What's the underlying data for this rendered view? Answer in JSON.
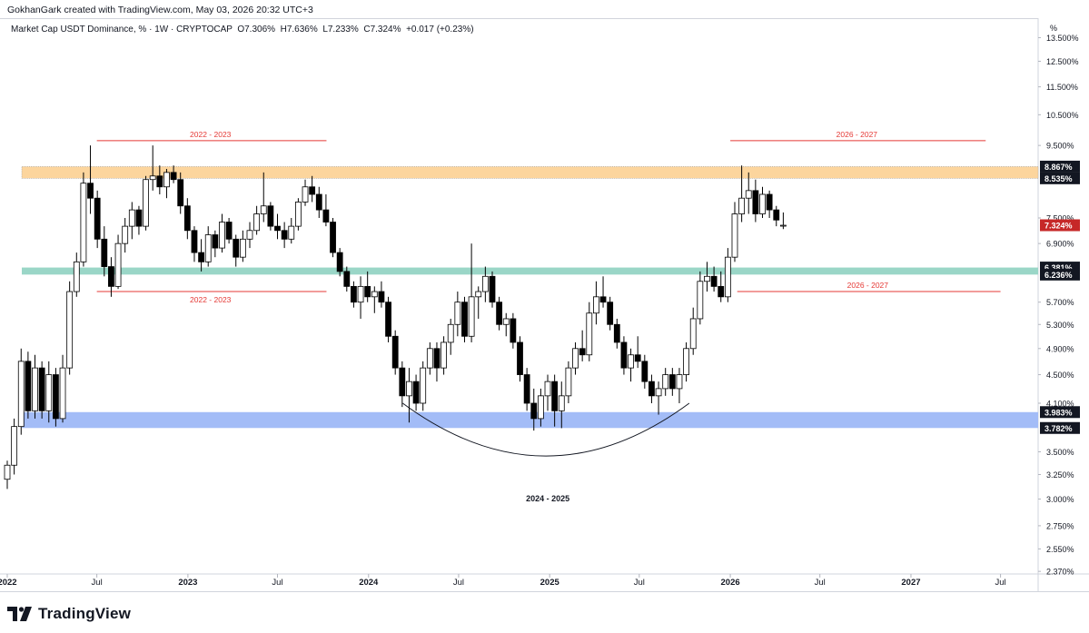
{
  "header": {
    "credit": "GokhanGark created with TradingView.com, May 03, 2026 20:32 UTC+3"
  },
  "legend": {
    "symbol": "Market Cap USDT Dominance, % · 1W · CRYPTOCAP",
    "open": "O7.306%",
    "high": "H7.636%",
    "low": "L7.233%",
    "close": "C7.324%",
    "change": "+0.017 (+0.23%)"
  },
  "footer": {
    "brand": "TradingView",
    "logo_icon": "tradingview-logo-icon"
  },
  "colors": {
    "up_candle": "#ffffff",
    "down_candle": "#000000",
    "resistance_zone": "#fcd59d",
    "support_mid_zone": "#9ad6c7",
    "support_low_zone": "#a3bcf7",
    "annotation_red": "#e53935",
    "last_price_badge": "#c62828"
  },
  "chart_data": {
    "type": "candlestick",
    "title": "Market Cap USDT Dominance, % · 1W · CRYPTOCAP",
    "y_unit": "%",
    "y_scale": "log",
    "ylim": [
      2.35,
      14.3
    ],
    "x_start": "2022-01-01",
    "x_end": "2027-09-15",
    "y_ticks": [
      "13.500%",
      "12.500%",
      "11.500%",
      "10.500%",
      "9.500%",
      "7.500%",
      "6.900%",
      "5.700%",
      "5.300%",
      "4.900%",
      "4.500%",
      "4.100%",
      "3.500%",
      "3.250%",
      "3.000%",
      "2.750%",
      "2.550%",
      "2.370%"
    ],
    "y_tick_values": [
      13.5,
      12.5,
      11.5,
      10.5,
      9.5,
      7.5,
      6.9,
      5.7,
      5.3,
      4.9,
      4.5,
      4.1,
      3.5,
      3.25,
      3.0,
      2.75,
      2.55,
      2.37
    ],
    "x_ticks": [
      {
        "label": "2022",
        "date": "2022-01-01"
      },
      {
        "label": "Jul",
        "date": "2022-07-01"
      },
      {
        "label": "2023",
        "date": "2023-01-01"
      },
      {
        "label": "Jul",
        "date": "2023-07-01"
      },
      {
        "label": "2024",
        "date": "2024-01-01"
      },
      {
        "label": "Jul",
        "date": "2024-07-01"
      },
      {
        "label": "2025",
        "date": "2025-01-01"
      },
      {
        "label": "Jul",
        "date": "2025-07-01"
      },
      {
        "label": "2026",
        "date": "2026-01-01"
      },
      {
        "label": "Jul",
        "date": "2026-07-01"
      },
      {
        "label": "2027",
        "date": "2027-01-01"
      },
      {
        "label": "Jul",
        "date": "2027-07-01"
      }
    ],
    "zones": [
      {
        "name": "resistance",
        "low": 8.535,
        "high": 8.867,
        "low_label": "8.535%",
        "high_label": "8.867%"
      },
      {
        "name": "mid-support",
        "low": 6.236,
        "high": 6.381,
        "low_label": "6.236%",
        "high_label": "6.381%"
      },
      {
        "name": "low-support",
        "low": 3.782,
        "high": 3.983,
        "low_label": "3.782%",
        "high_label": "3.983%"
      }
    ],
    "last_price": {
      "value": 7.324,
      "label": "7.324%"
    },
    "annotations": [
      {
        "text": "2022 - 2023",
        "y": 9.65,
        "x_from": "2022-07-01",
        "x_to": "2023-10-08",
        "label_pos": "above"
      },
      {
        "text": "2022 - 2023",
        "y": 5.9,
        "x_from": "2022-07-01",
        "x_to": "2023-10-08",
        "label_pos": "below"
      },
      {
        "text": "2026 - 2027",
        "y": 9.65,
        "x_from": "2026-01-01",
        "x_to": "2027-06-01",
        "label_pos": "above"
      },
      {
        "text": "2026 - 2027",
        "y": 5.9,
        "x_from": "2026-01-15",
        "x_to": "2027-07-01",
        "label_pos": "above"
      },
      {
        "text": "2024 - 2025",
        "y": 3.35,
        "x_from": "2024-03-10",
        "x_to": "2025-10-10",
        "label_pos": "below",
        "shape": "arc"
      }
    ],
    "candles": [
      {
        "d": "2022-01-01",
        "o": 3.2,
        "h": 3.4,
        "l": 3.1,
        "c": 3.35
      },
      {
        "d": "2022-01-15",
        "o": 3.35,
        "h": 3.9,
        "l": 3.25,
        "c": 3.8
      },
      {
        "d": "2022-01-29",
        "o": 3.8,
        "h": 4.9,
        "l": 3.7,
        "c": 4.7
      },
      {
        "d": "2022-02-12",
        "o": 4.7,
        "h": 4.85,
        "l": 3.9,
        "c": 4.0
      },
      {
        "d": "2022-02-26",
        "o": 4.0,
        "h": 4.8,
        "l": 3.9,
        "c": 4.6
      },
      {
        "d": "2022-03-12",
        "o": 4.6,
        "h": 4.7,
        "l": 3.9,
        "c": 4.0
      },
      {
        "d": "2022-03-26",
        "o": 4.0,
        "h": 4.7,
        "l": 3.85,
        "c": 4.5
      },
      {
        "d": "2022-04-09",
        "o": 4.5,
        "h": 4.6,
        "l": 3.8,
        "c": 3.9
      },
      {
        "d": "2022-04-23",
        "o": 3.9,
        "h": 4.8,
        "l": 3.85,
        "c": 4.6
      },
      {
        "d": "2022-05-07",
        "o": 4.6,
        "h": 6.1,
        "l": 4.5,
        "c": 5.9
      },
      {
        "d": "2022-05-21",
        "o": 5.9,
        "h": 6.7,
        "l": 5.8,
        "c": 6.5
      },
      {
        "d": "2022-06-04",
        "o": 6.5,
        "h": 8.7,
        "l": 6.4,
        "c": 8.4
      },
      {
        "d": "2022-06-18",
        "o": 8.4,
        "h": 9.5,
        "l": 7.6,
        "c": 8.0
      },
      {
        "d": "2022-07-02",
        "o": 8.0,
        "h": 8.2,
        "l": 6.8,
        "c": 7.0
      },
      {
        "d": "2022-07-16",
        "o": 7.0,
        "h": 7.3,
        "l": 6.2,
        "c": 6.4
      },
      {
        "d": "2022-07-30",
        "o": 6.4,
        "h": 6.6,
        "l": 5.8,
        "c": 6.0
      },
      {
        "d": "2022-08-13",
        "o": 6.0,
        "h": 7.1,
        "l": 5.95,
        "c": 6.9
      },
      {
        "d": "2022-08-27",
        "o": 6.9,
        "h": 7.5,
        "l": 6.7,
        "c": 7.3
      },
      {
        "d": "2022-09-10",
        "o": 7.3,
        "h": 7.9,
        "l": 7.0,
        "c": 7.7
      },
      {
        "d": "2022-09-24",
        "o": 7.7,
        "h": 7.8,
        "l": 7.1,
        "c": 7.3
      },
      {
        "d": "2022-10-08",
        "o": 7.3,
        "h": 8.6,
        "l": 7.2,
        "c": 8.5
      },
      {
        "d": "2022-10-22",
        "o": 8.5,
        "h": 9.5,
        "l": 8.2,
        "c": 8.6
      },
      {
        "d": "2022-11-05",
        "o": 8.6,
        "h": 8.9,
        "l": 8.1,
        "c": 8.3
      },
      {
        "d": "2022-11-19",
        "o": 8.3,
        "h": 8.8,
        "l": 8.0,
        "c": 8.7
      },
      {
        "d": "2022-12-03",
        "o": 8.7,
        "h": 8.9,
        "l": 8.4,
        "c": 8.5
      },
      {
        "d": "2022-12-17",
        "o": 8.5,
        "h": 8.7,
        "l": 7.6,
        "c": 7.8
      },
      {
        "d": "2022-12-31",
        "o": 7.8,
        "h": 8.0,
        "l": 7.0,
        "c": 7.2
      },
      {
        "d": "2023-01-14",
        "o": 7.2,
        "h": 7.3,
        "l": 6.5,
        "c": 6.7
      },
      {
        "d": "2023-01-28",
        "o": 6.7,
        "h": 7.0,
        "l": 6.3,
        "c": 6.5
      },
      {
        "d": "2023-02-11",
        "o": 6.5,
        "h": 7.3,
        "l": 6.4,
        "c": 7.1
      },
      {
        "d": "2023-02-25",
        "o": 7.1,
        "h": 7.2,
        "l": 6.6,
        "c": 6.8
      },
      {
        "d": "2023-03-11",
        "o": 6.8,
        "h": 7.6,
        "l": 6.7,
        "c": 7.4
      },
      {
        "d": "2023-03-25",
        "o": 7.4,
        "h": 7.5,
        "l": 6.9,
        "c": 7.0
      },
      {
        "d": "2023-04-08",
        "o": 7.0,
        "h": 7.1,
        "l": 6.4,
        "c": 6.6
      },
      {
        "d": "2023-04-22",
        "o": 6.6,
        "h": 7.2,
        "l": 6.5,
        "c": 7.0
      },
      {
        "d": "2023-05-06",
        "o": 7.0,
        "h": 7.4,
        "l": 6.8,
        "c": 7.2
      },
      {
        "d": "2023-05-20",
        "o": 7.2,
        "h": 7.8,
        "l": 7.1,
        "c": 7.6
      },
      {
        "d": "2023-06-03",
        "o": 7.6,
        "h": 8.7,
        "l": 7.4,
        "c": 7.8
      },
      {
        "d": "2023-06-17",
        "o": 7.8,
        "h": 7.9,
        "l": 7.2,
        "c": 7.3
      },
      {
        "d": "2023-07-01",
        "o": 7.3,
        "h": 7.6,
        "l": 7.0,
        "c": 7.2
      },
      {
        "d": "2023-07-15",
        "o": 7.2,
        "h": 7.4,
        "l": 6.8,
        "c": 7.0
      },
      {
        "d": "2023-07-29",
        "o": 7.0,
        "h": 7.5,
        "l": 6.9,
        "c": 7.3
      },
      {
        "d": "2023-08-12",
        "o": 7.3,
        "h": 8.0,
        "l": 7.2,
        "c": 7.9
      },
      {
        "d": "2023-08-26",
        "o": 7.9,
        "h": 8.5,
        "l": 7.8,
        "c": 8.3
      },
      {
        "d": "2023-09-09",
        "o": 8.3,
        "h": 8.6,
        "l": 7.9,
        "c": 8.1
      },
      {
        "d": "2023-09-23",
        "o": 8.1,
        "h": 8.3,
        "l": 7.5,
        "c": 7.7
      },
      {
        "d": "2023-10-07",
        "o": 7.7,
        "h": 8.1,
        "l": 7.3,
        "c": 7.4
      },
      {
        "d": "2023-10-21",
        "o": 7.4,
        "h": 7.5,
        "l": 6.6,
        "c": 6.7
      },
      {
        "d": "2023-11-04",
        "o": 6.7,
        "h": 6.8,
        "l": 6.2,
        "c": 6.3
      },
      {
        "d": "2023-11-18",
        "o": 6.3,
        "h": 6.4,
        "l": 5.9,
        "c": 6.0
      },
      {
        "d": "2023-12-02",
        "o": 6.0,
        "h": 6.1,
        "l": 5.6,
        "c": 5.7
      },
      {
        "d": "2023-12-16",
        "o": 5.7,
        "h": 6.2,
        "l": 5.4,
        "c": 6.0
      },
      {
        "d": "2023-12-30",
        "o": 6.0,
        "h": 6.3,
        "l": 5.7,
        "c": 5.8
      },
      {
        "d": "2024-01-13",
        "o": 5.8,
        "h": 6.0,
        "l": 5.5,
        "c": 5.9
      },
      {
        "d": "2024-01-27",
        "o": 5.9,
        "h": 6.1,
        "l": 5.6,
        "c": 5.7
      },
      {
        "d": "2024-02-10",
        "o": 5.7,
        "h": 5.8,
        "l": 5.0,
        "c": 5.1
      },
      {
        "d": "2024-02-24",
        "o": 5.1,
        "h": 5.2,
        "l": 4.5,
        "c": 4.6
      },
      {
        "d": "2024-03-09",
        "o": 4.6,
        "h": 4.7,
        "l": 4.05,
        "c": 4.2
      },
      {
        "d": "2024-03-23",
        "o": 4.2,
        "h": 4.6,
        "l": 3.85,
        "c": 4.4
      },
      {
        "d": "2024-04-06",
        "o": 4.4,
        "h": 4.5,
        "l": 4.0,
        "c": 4.1
      },
      {
        "d": "2024-04-20",
        "o": 4.1,
        "h": 4.7,
        "l": 4.0,
        "c": 4.6
      },
      {
        "d": "2024-05-04",
        "o": 4.6,
        "h": 5.0,
        "l": 4.5,
        "c": 4.9
      },
      {
        "d": "2024-05-18",
        "o": 4.9,
        "h": 5.0,
        "l": 4.4,
        "c": 4.6
      },
      {
        "d": "2024-06-01",
        "o": 4.6,
        "h": 5.1,
        "l": 4.5,
        "c": 5.0
      },
      {
        "d": "2024-06-15",
        "o": 5.0,
        "h": 5.4,
        "l": 4.8,
        "c": 5.3
      },
      {
        "d": "2024-06-29",
        "o": 5.3,
        "h": 5.9,
        "l": 5.1,
        "c": 5.7
      },
      {
        "d": "2024-07-13",
        "o": 5.7,
        "h": 5.8,
        "l": 5.0,
        "c": 5.1
      },
      {
        "d": "2024-07-27",
        "o": 5.1,
        "h": 6.9,
        "l": 5.0,
        "c": 5.8
      },
      {
        "d": "2024-08-10",
        "o": 5.8,
        "h": 6.0,
        "l": 5.4,
        "c": 5.9
      },
      {
        "d": "2024-08-24",
        "o": 5.9,
        "h": 6.4,
        "l": 5.7,
        "c": 6.2
      },
      {
        "d": "2024-09-07",
        "o": 6.2,
        "h": 6.3,
        "l": 5.6,
        "c": 5.7
      },
      {
        "d": "2024-09-21",
        "o": 5.7,
        "h": 5.8,
        "l": 5.2,
        "c": 5.3
      },
      {
        "d": "2024-10-05",
        "o": 5.3,
        "h": 5.5,
        "l": 5.1,
        "c": 5.4
      },
      {
        "d": "2024-10-19",
        "o": 5.4,
        "h": 5.5,
        "l": 4.9,
        "c": 5.0
      },
      {
        "d": "2024-11-02",
        "o": 5.0,
        "h": 5.1,
        "l": 4.4,
        "c": 4.5
      },
      {
        "d": "2024-11-16",
        "o": 4.5,
        "h": 4.6,
        "l": 4.0,
        "c": 4.1
      },
      {
        "d": "2024-11-30",
        "o": 4.1,
        "h": 4.3,
        "l": 3.75,
        "c": 3.9
      },
      {
        "d": "2024-12-14",
        "o": 3.9,
        "h": 4.3,
        "l": 3.8,
        "c": 4.2
      },
      {
        "d": "2024-12-28",
        "o": 4.2,
        "h": 4.5,
        "l": 4.0,
        "c": 4.4
      },
      {
        "d": "2025-01-11",
        "o": 4.4,
        "h": 4.5,
        "l": 3.8,
        "c": 4.0
      },
      {
        "d": "2025-01-25",
        "o": 4.0,
        "h": 4.4,
        "l": 3.78,
        "c": 4.2
      },
      {
        "d": "2025-02-08",
        "o": 4.2,
        "h": 4.7,
        "l": 4.1,
        "c": 4.6
      },
      {
        "d": "2025-02-22",
        "o": 4.6,
        "h": 5.0,
        "l": 4.5,
        "c": 4.9
      },
      {
        "d": "2025-03-08",
        "o": 4.9,
        "h": 5.2,
        "l": 4.7,
        "c": 4.8
      },
      {
        "d": "2025-03-22",
        "o": 4.8,
        "h": 5.7,
        "l": 4.7,
        "c": 5.5
      },
      {
        "d": "2025-04-05",
        "o": 5.5,
        "h": 6.1,
        "l": 5.3,
        "c": 5.8
      },
      {
        "d": "2025-04-19",
        "o": 5.8,
        "h": 6.2,
        "l": 5.6,
        "c": 5.7
      },
      {
        "d": "2025-05-03",
        "o": 5.7,
        "h": 5.8,
        "l": 5.2,
        "c": 5.3
      },
      {
        "d": "2025-05-17",
        "o": 5.3,
        "h": 5.4,
        "l": 4.9,
        "c": 5.0
      },
      {
        "d": "2025-05-31",
        "o": 5.0,
        "h": 5.1,
        "l": 4.5,
        "c": 4.6
      },
      {
        "d": "2025-06-14",
        "o": 4.6,
        "h": 4.9,
        "l": 4.4,
        "c": 4.8
      },
      {
        "d": "2025-06-28",
        "o": 4.8,
        "h": 5.1,
        "l": 4.6,
        "c": 4.7
      },
      {
        "d": "2025-07-12",
        "o": 4.7,
        "h": 4.8,
        "l": 4.3,
        "c": 4.4
      },
      {
        "d": "2025-07-26",
        "o": 4.4,
        "h": 4.5,
        "l": 4.1,
        "c": 4.2
      },
      {
        "d": "2025-08-09",
        "o": 4.2,
        "h": 4.4,
        "l": 3.95,
        "c": 4.3
      },
      {
        "d": "2025-08-23",
        "o": 4.3,
        "h": 4.6,
        "l": 4.2,
        "c": 4.5
      },
      {
        "d": "2025-09-06",
        "o": 4.5,
        "h": 4.6,
        "l": 4.2,
        "c": 4.3
      },
      {
        "d": "2025-09-20",
        "o": 4.3,
        "h": 4.6,
        "l": 4.1,
        "c": 4.5
      },
      {
        "d": "2025-10-04",
        "o": 4.5,
        "h": 5.0,
        "l": 4.4,
        "c": 4.9
      },
      {
        "d": "2025-10-18",
        "o": 4.9,
        "h": 5.6,
        "l": 4.8,
        "c": 5.4
      },
      {
        "d": "2025-11-01",
        "o": 5.4,
        "h": 6.3,
        "l": 5.3,
        "c": 6.1
      },
      {
        "d": "2025-11-15",
        "o": 6.1,
        "h": 6.5,
        "l": 5.9,
        "c": 6.2
      },
      {
        "d": "2025-11-29",
        "o": 6.2,
        "h": 6.4,
        "l": 5.9,
        "c": 6.0
      },
      {
        "d": "2025-12-13",
        "o": 6.0,
        "h": 6.3,
        "l": 5.7,
        "c": 5.8
      },
      {
        "d": "2025-12-27",
        "o": 5.8,
        "h": 6.8,
        "l": 5.7,
        "c": 6.6
      },
      {
        "d": "2026-01-10",
        "o": 6.6,
        "h": 7.9,
        "l": 6.5,
        "c": 7.6
      },
      {
        "d": "2026-01-24",
        "o": 7.6,
        "h": 8.9,
        "l": 7.4,
        "c": 8.0
      },
      {
        "d": "2026-02-07",
        "o": 8.0,
        "h": 8.7,
        "l": 7.6,
        "c": 8.2
      },
      {
        "d": "2026-02-21",
        "o": 8.2,
        "h": 8.5,
        "l": 7.4,
        "c": 7.6
      },
      {
        "d": "2026-03-07",
        "o": 7.6,
        "h": 8.3,
        "l": 7.5,
        "c": 8.1
      },
      {
        "d": "2026-03-21",
        "o": 8.1,
        "h": 8.2,
        "l": 7.5,
        "c": 7.7
      },
      {
        "d": "2026-04-04",
        "o": 7.7,
        "h": 7.8,
        "l": 7.3,
        "c": 7.45
      },
      {
        "d": "2026-04-18",
        "o": 7.306,
        "h": 7.636,
        "l": 7.233,
        "c": 7.324
      }
    ]
  }
}
